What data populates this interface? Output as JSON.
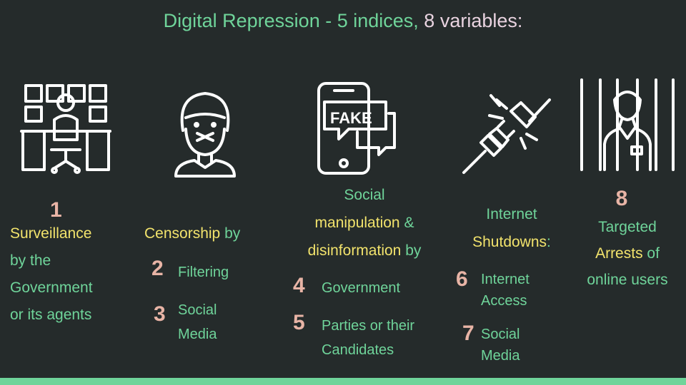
{
  "title": {
    "main": "Digital Repression - 5 indices,",
    "count": "8 variables:"
  },
  "col1": {
    "number": "1",
    "label_a": "Surveillance",
    "label_b": "by the",
    "label_c": "Government",
    "label_d": "or its agents"
  },
  "col2": {
    "heading": "Censorship",
    "by": "by",
    "items": [
      {
        "number": "2",
        "label_a": "Filtering",
        "label_b": ""
      },
      {
        "number": "3",
        "label_a": "Social",
        "label_b": "Media"
      }
    ]
  },
  "col3": {
    "line1": "Social",
    "line2": "manipulation",
    "amp": "&",
    "line3": "disinformation",
    "by": "by",
    "items": [
      {
        "number": "4",
        "label_a": "Government",
        "label_b": ""
      },
      {
        "number": "5",
        "label_a": "Parties or their",
        "label_b": "Candidates"
      }
    ]
  },
  "col4": {
    "line1": "Internet",
    "line2": "Shutdowns",
    "colon": ":",
    "items": [
      {
        "number": "6",
        "label_a": "Internet",
        "label_b": "Access"
      },
      {
        "number": "7",
        "label_a": "Social",
        "label_b": "Media"
      }
    ]
  },
  "col5": {
    "number": "8",
    "line1": "Targeted",
    "line2": "Arrests",
    "of": "of",
    "line3": "online users"
  },
  "icons": {
    "fake_text": "FAKE"
  },
  "colors": {
    "background": "#252b2b",
    "green": "#6fd49a",
    "yellow": "#f2e36c",
    "number": "#e8b4a6"
  }
}
